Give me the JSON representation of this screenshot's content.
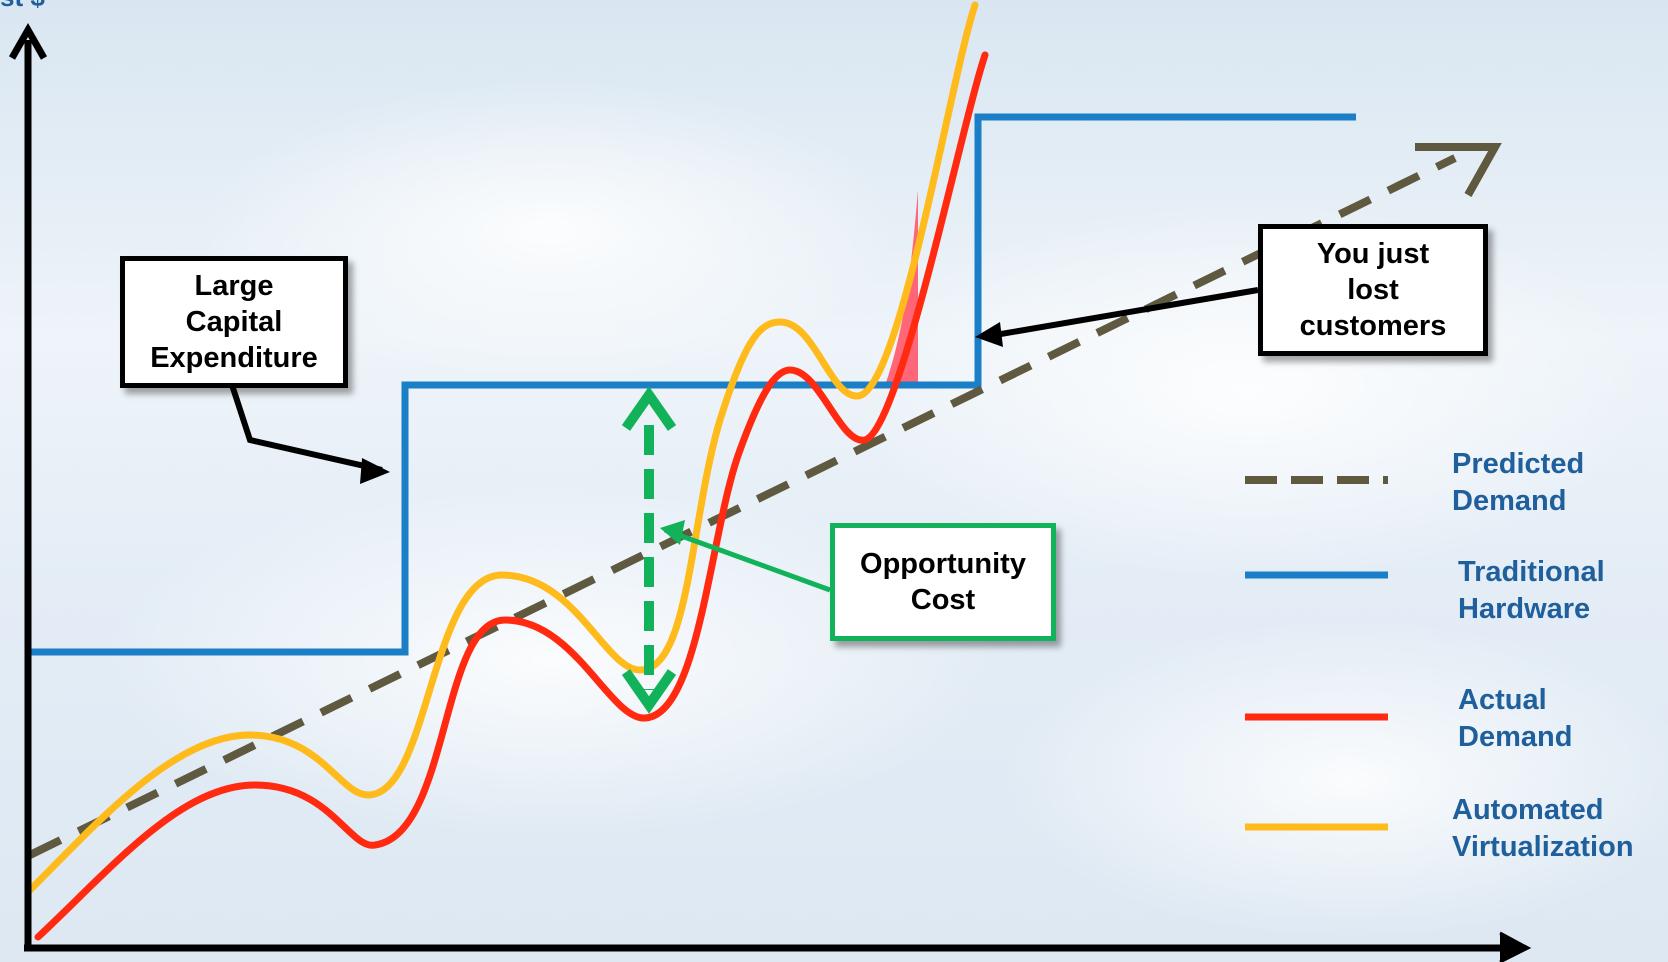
{
  "axis": {
    "y_label_fragment": "st $"
  },
  "colors": {
    "predicted": "#5f5a3f",
    "traditional": "#1a7fc6",
    "actual": "#ff2a10",
    "automated": "#ffba1c",
    "opportunity": "#11b25a",
    "lost_fill": "#ff5a6b",
    "legend_text": "#1f5f9c"
  },
  "callouts": {
    "capex": "Large\nCapital\nExpenditure",
    "lost": "You just\nlost\ncustomers",
    "opportunity": "Opportunity\nCost"
  },
  "legend": [
    {
      "key": "predicted",
      "label": "Predicted\nDemand",
      "style": "dashed"
    },
    {
      "key": "traditional",
      "label": "Traditional\nHardware",
      "style": "solid"
    },
    {
      "key": "actual",
      "label": "Actual\nDemand",
      "style": "solid"
    },
    {
      "key": "automated",
      "label": "Automated\nVirtualization",
      "style": "solid"
    }
  ]
}
